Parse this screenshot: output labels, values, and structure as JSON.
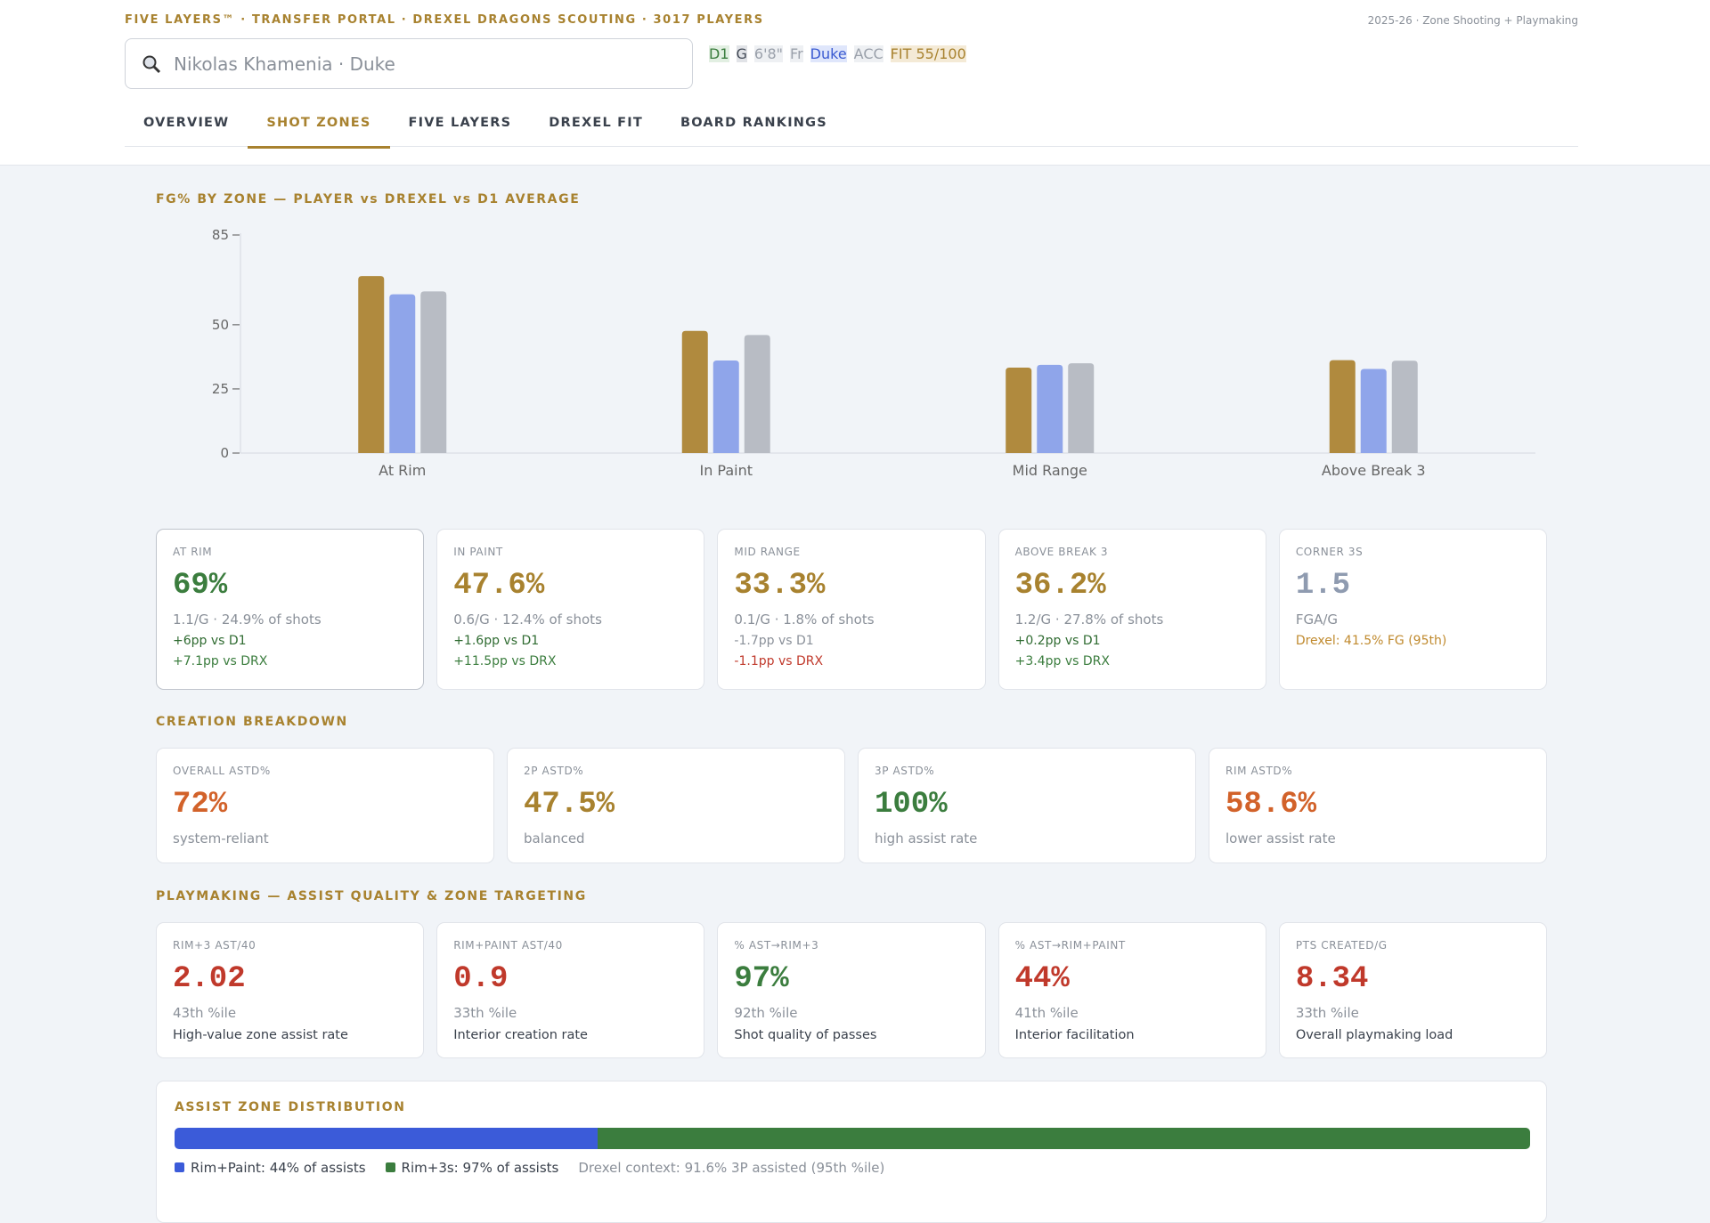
{
  "header": {
    "brand": "FIVE LAYERS™ · TRANSFER PORTAL · DREXEL DRAGONS SCOUTING · 3017 PLAYERS",
    "context": "2025-26 · Zone Shooting + Playmaking",
    "search": "Nikolas Khamenia · Duke",
    "chips": [
      {
        "text": "D1",
        "bg": "#e2efe2",
        "color": "#3b7d3e"
      },
      {
        "text": "G",
        "bg": "#e1e3e7",
        "color": "#444b57"
      },
      {
        "text": "6'8\"",
        "bg": "#eef0f3",
        "color": "#9aa0aa"
      },
      {
        "text": "Fr",
        "bg": "#eef0f3",
        "color": "#9aa0aa"
      },
      {
        "text": "Duke",
        "bg": "#dfe6fb",
        "color": "#3b5bd1"
      },
      {
        "text": "ACC",
        "bg": "#eef0f3",
        "color": "#9aa0aa"
      },
      {
        "text": "FIT 55/100",
        "bg": "#f4ead6",
        "color": "#a8822f"
      }
    ],
    "tabs": [
      "OVERVIEW",
      "SHOT ZONES",
      "FIVE LAYERS",
      "DREXEL FIT",
      "BOARD RANKINGS"
    ],
    "active_tab": 1
  },
  "chart_data": {
    "type": "bar",
    "title": "FG% BY ZONE — PLAYER vs DREXEL vs D1 AVERAGE",
    "categories": [
      "At Rim",
      "In Paint",
      "Mid Range",
      "Above Break 3"
    ],
    "series": [
      {
        "color": "#b08a3e",
        "values": [
          69,
          47.6,
          33.3,
          36.2
        ]
      },
      {
        "color": "#8fa5ea",
        "values": [
          61.9,
          36.1,
          34.4,
          32.8
        ]
      },
      {
        "color": "#b8bcc4",
        "values": [
          63,
          46,
          35,
          36
        ]
      }
    ],
    "ylim": [
      0,
      85
    ],
    "yticks": [
      0,
      25,
      50,
      85
    ]
  },
  "zone_cards": [
    {
      "label": "AT RIM",
      "value": "69%",
      "color": "#3b7d3e",
      "sub": "1.1/G · 24.9% of shots",
      "lines": [
        {
          "text": "+6pp vs D1",
          "color": "#2f6b31"
        },
        {
          "text": "+7.1pp vs DRX",
          "color": "#3b7d3e"
        }
      ]
    },
    {
      "label": "IN PAINT",
      "value": "47.6%",
      "color": "#a8822f",
      "sub": "0.6/G · 12.4% of shots",
      "lines": [
        {
          "text": "+1.6pp vs D1",
          "color": "#2f6b31"
        },
        {
          "text": "+11.5pp vs DRX",
          "color": "#3b7d3e"
        }
      ]
    },
    {
      "label": "MID RANGE",
      "value": "33.3%",
      "color": "#a8822f",
      "sub": "0.1/G · 1.8% of shots",
      "lines": [
        {
          "text": "-1.7pp vs D1",
          "color": "#8a9099"
        },
        {
          "text": "-1.1pp vs DRX",
          "color": "#c0392b"
        }
      ]
    },
    {
      "label": "ABOVE BREAK 3",
      "value": "36.2%",
      "color": "#a8822f",
      "sub": "1.2/G · 27.8% of shots",
      "lines": [
        {
          "text": "+0.2pp vs D1",
          "color": "#2f6b31"
        },
        {
          "text": "+3.4pp vs DRX",
          "color": "#3b7d3e"
        }
      ]
    },
    {
      "label": "CORNER 3S",
      "value": "1.5",
      "color": "#8f9bb0",
      "sub": "FGA/G",
      "lines": [
        {
          "text": "Drexel: 41.5% FG (95th)",
          "color": "#c08a2e"
        }
      ]
    }
  ],
  "creation": {
    "title": "CREATION BREAKDOWN",
    "cards": [
      {
        "label": "OVERALL ASTD%",
        "value": "72%",
        "color": "#d2622a",
        "sub": "system-reliant"
      },
      {
        "label": "2P ASTD%",
        "value": "47.5%",
        "color": "#a8822f",
        "sub": "balanced"
      },
      {
        "label": "3P ASTD%",
        "value": "100%",
        "color": "#3b7d3e",
        "sub": "high assist rate"
      },
      {
        "label": "RIM ASTD%",
        "value": "58.6%",
        "color": "#d2622a",
        "sub": "lower assist rate"
      }
    ]
  },
  "playmaking": {
    "title": "PLAYMAKING — ASSIST QUALITY & ZONE TARGETING",
    "cards": [
      {
        "label": "RIM+3 AST/40",
        "value": "2.02",
        "color": "#c0392b",
        "sub": "43th %ile",
        "note": "High-value zone assist rate"
      },
      {
        "label": "RIM+PAINT AST/40",
        "value": "0.9",
        "color": "#c0392b",
        "sub": "33th %ile",
        "note": "Interior creation rate"
      },
      {
        "label": "% AST→RIM+3",
        "value": "97%",
        "color": "#3b7d3e",
        "sub": "92th %ile",
        "note": "Shot quality of passes"
      },
      {
        "label": "% AST→RIM+PAINT",
        "value": "44%",
        "color": "#c0392b",
        "sub": "41th %ile",
        "note": "Interior facilitation"
      },
      {
        "label": "PTS CREATED/G",
        "value": "8.34",
        "color": "#c0392b",
        "sub": "33th %ile",
        "note": "Overall playmaking load"
      }
    ]
  },
  "assist_distribution": {
    "title": "ASSIST ZONE DISTRIBUTION",
    "segments": [
      {
        "label": "Rim+Paint: 44% of assists",
        "value": 44,
        "color": "#3b5bd9"
      },
      {
        "label": "Rim+3s: 97% of assists",
        "value": 97,
        "color": "#3b7d3e"
      }
    ],
    "context": "Drexel context: 91.6% 3P assisted (95th %ile)"
  }
}
